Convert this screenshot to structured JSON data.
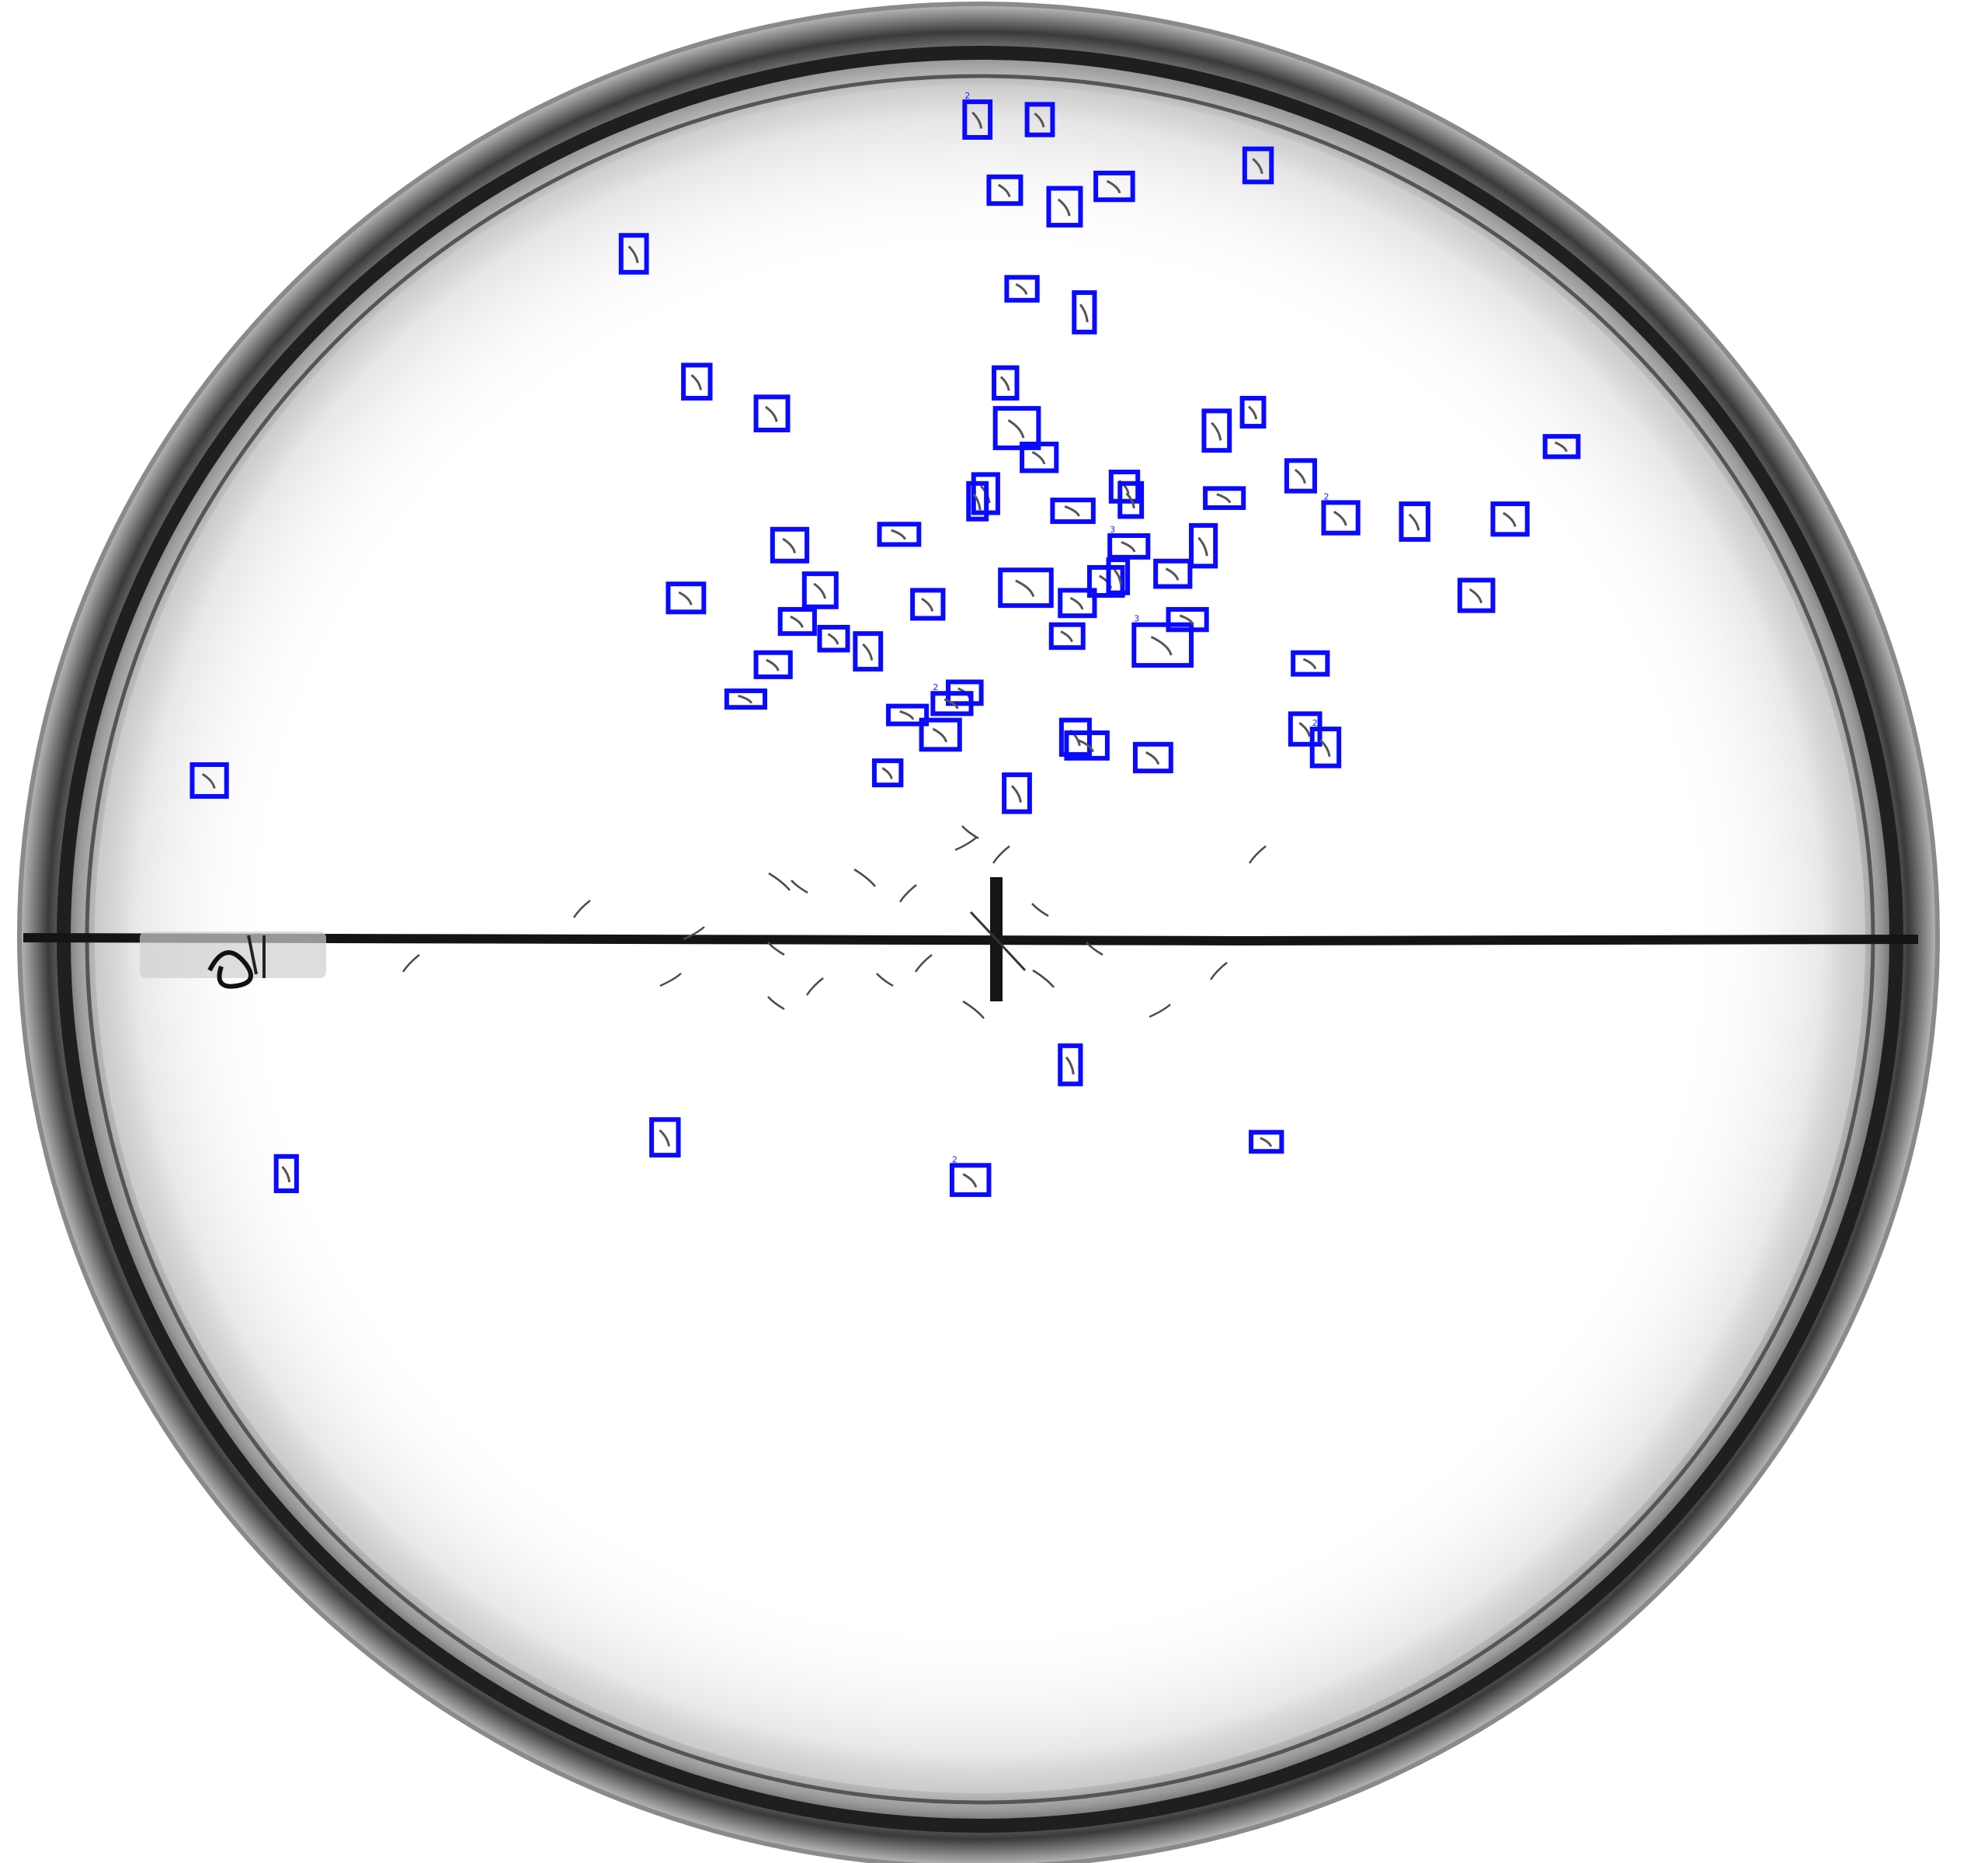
{
  "image": {
    "subject": "petri-dish-worm-detection",
    "box_color": "#0a0aff",
    "plate_rim_color": "#2a2a2a",
    "background_color": "#ffffff"
  },
  "detections": [
    {
      "label": "2"
    },
    {
      "label": ""
    },
    {
      "label": ""
    },
    {
      "label": ""
    },
    {
      "label": ""
    },
    {
      "label": ""
    },
    {
      "label": ""
    },
    {
      "label": ""
    },
    {
      "label": ""
    },
    {
      "label": ""
    },
    {
      "label": ""
    },
    {
      "label": ""
    },
    {
      "label": ""
    },
    {
      "label": ""
    },
    {
      "label": ""
    },
    {
      "label": ""
    },
    {
      "label": ""
    },
    {
      "label": ""
    },
    {
      "label": ""
    },
    {
      "label": ""
    },
    {
      "label": ""
    },
    {
      "label": ""
    },
    {
      "label": ""
    },
    {
      "label": ""
    },
    {
      "label": "2"
    },
    {
      "label": ""
    },
    {
      "label": ""
    },
    {
      "label": ""
    },
    {
      "label": ""
    },
    {
      "label": "3"
    },
    {
      "label": ""
    },
    {
      "label": ""
    },
    {
      "label": ""
    },
    {
      "label": ""
    },
    {
      "label": ""
    },
    {
      "label": ""
    },
    {
      "label": ""
    },
    {
      "label": ""
    },
    {
      "label": ""
    },
    {
      "label": ""
    },
    {
      "label": ""
    },
    {
      "label": "3"
    },
    {
      "label": ""
    },
    {
      "label": ""
    },
    {
      "label": ""
    },
    {
      "label": ""
    },
    {
      "label": ""
    },
    {
      "label": ""
    },
    {
      "label": ""
    },
    {
      "label": ""
    },
    {
      "label": "2"
    },
    {
      "label": ""
    },
    {
      "label": ""
    },
    {
      "label": ""
    },
    {
      "label": ""
    },
    {
      "label": ""
    },
    {
      "label": "2"
    },
    {
      "label": ""
    },
    {
      "label": ""
    },
    {
      "label": ""
    },
    {
      "label": ""
    },
    {
      "label": ""
    },
    {
      "label": ""
    },
    {
      "label": ""
    },
    {
      "label": ""
    },
    {
      "label": "2"
    }
  ]
}
